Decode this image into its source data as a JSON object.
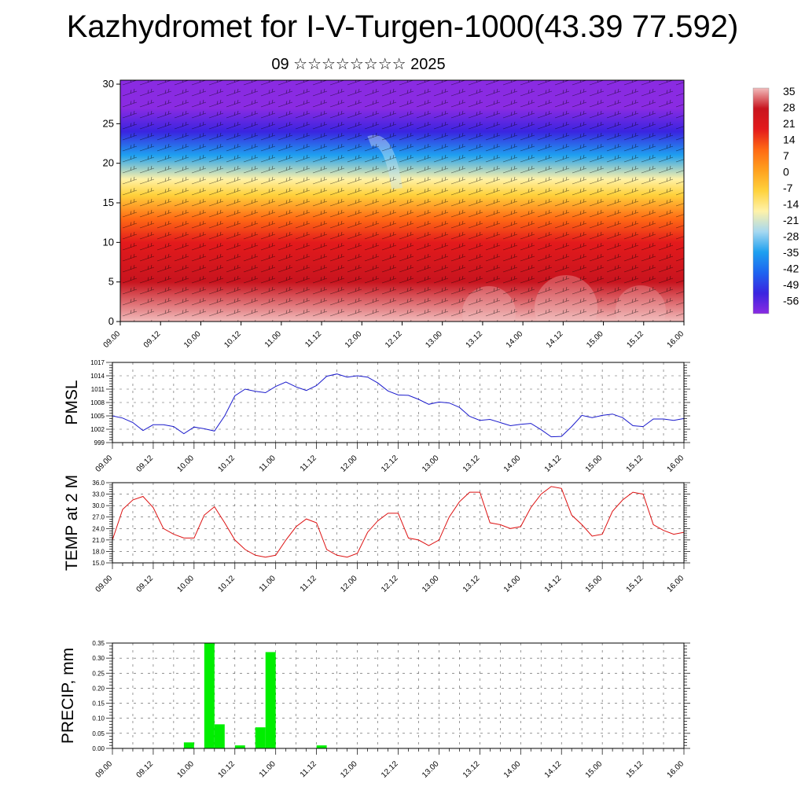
{
  "page": {
    "title": "Kazhydromet for I-V-Turgen-1000(43.39 77.592)",
    "subtitle": "09 ☆☆☆☆☆☆☆☆ 2025"
  },
  "colors": {
    "pmsl_line": "#1a1acc",
    "temp_line": "#dd1111",
    "precip_bar": "#00ee00",
    "heat_scale": [
      "#8a2be2",
      "#3a24e0",
      "#1e64f0",
      "#1ea0f0",
      "#a6d8f0",
      "#fff2a8",
      "#ffd23c",
      "#ffa01e",
      "#ff6a14",
      "#e31a1c",
      "#c8141e",
      "#f2bcbc"
    ]
  },
  "chart_data": [
    {
      "type": "heatmap",
      "id": "cross-section",
      "x_ticks": [
        "09.00",
        "09.12",
        "10.00",
        "10.12",
        "11.00",
        "11.12",
        "12.00",
        "12.12",
        "13.00",
        "13.12",
        "14.00",
        "14.12",
        "15.00",
        "15.12",
        "16.00"
      ],
      "y_ticks": [
        0,
        5,
        10,
        15,
        20,
        25,
        30
      ],
      "ylim": [
        0,
        30.5
      ],
      "colorbar_labels": [
        "35",
        "28",
        "21",
        "14",
        "7",
        "0",
        "-7",
        "-14",
        "-21",
        "-28",
        "-35",
        "-42",
        "-49",
        "-56"
      ],
      "vertical_profile": [
        {
          "level": 0,
          "value": 31
        },
        {
          "level": 5,
          "value": 28
        },
        {
          "level": 10,
          "value": 22
        },
        {
          "level": 13,
          "value": 12
        },
        {
          "level": 16,
          "value": -8
        },
        {
          "level": 18,
          "value": -18
        },
        {
          "level": 21,
          "value": -32
        },
        {
          "level": 24,
          "value": -52
        },
        {
          "level": 27,
          "value": -58
        },
        {
          "level": 30.5,
          "value": -56
        }
      ]
    },
    {
      "type": "line",
      "id": "pmsl",
      "ylabel": "PMSL",
      "y_ticks": [
        "999",
        "1002",
        "1005",
        "1008",
        "1011",
        "1014",
        "1017"
      ],
      "ylim": [
        999,
        1017
      ],
      "x_ticks": [
        "09.00",
        "09.12",
        "10.00",
        "10.12",
        "11.00",
        "11.12",
        "12.00",
        "12.12",
        "13.00",
        "13.12",
        "14.00",
        "14.12",
        "15.00",
        "15.12",
        "16.00"
      ],
      "series": [
        {
          "x_hours": [
            0,
            3,
            6,
            9,
            12,
            15,
            18,
            21,
            24,
            27,
            30,
            33,
            36,
            39,
            42,
            45,
            48,
            51,
            54,
            57,
            60,
            63,
            66,
            69,
            72,
            75,
            78,
            81,
            84,
            87,
            90,
            93,
            96,
            99,
            102,
            105,
            108,
            111,
            114,
            117,
            120,
            123,
            126,
            129,
            132,
            135,
            138,
            141,
            144,
            147,
            150,
            153,
            156,
            159,
            162,
            165,
            168
          ],
          "values": [
            1005,
            1004.5,
            1003.5,
            1001.7,
            1003,
            1003,
            1002.6,
            1001,
            1002.5,
            1002.1,
            1001.6,
            1005,
            1009.5,
            1011,
            1010.5,
            1010.2,
            1011.6,
            1012.6,
            1011.5,
            1010.7,
            1011.8,
            1013.9,
            1014.4,
            1013.7,
            1014,
            1013.7,
            1012.4,
            1010.6,
            1009.7,
            1009.6,
            1008.7,
            1007.6,
            1008.1,
            1007.9,
            1006.9,
            1004.9,
            1004,
            1004.2,
            1003.5,
            1002.8,
            1003.1,
            1003.3,
            1001.9,
            1000.3,
            1000.4,
            1002.6,
            1005.1,
            1004.6,
            1005.1,
            1005.4,
            1004.6,
            1002.8,
            1002.6,
            1004.3,
            1004.3,
            1004,
            1004.4
          ]
        }
      ]
    },
    {
      "type": "line",
      "id": "temp",
      "ylabel": "TEMP at 2 M",
      "y_ticks": [
        "15.0",
        "18.0",
        "21.0",
        "24.0",
        "27.0",
        "30.0",
        "33.0",
        "36.0"
      ],
      "ylim": [
        15,
        36
      ],
      "x_ticks": [
        "09.00",
        "09.12",
        "10.00",
        "10.12",
        "11.00",
        "11.12",
        "12.00",
        "12.12",
        "13.00",
        "13.12",
        "14.00",
        "14.12",
        "15.00",
        "15.12",
        "16.00"
      ],
      "series": [
        {
          "x_hours": [
            0,
            3,
            6,
            9,
            12,
            15,
            18,
            21,
            24,
            27,
            30,
            33,
            36,
            39,
            42,
            45,
            48,
            51,
            54,
            57,
            60,
            63,
            66,
            69,
            72,
            75,
            78,
            81,
            84,
            87,
            90,
            93,
            96,
            99,
            102,
            105,
            108,
            111,
            114,
            117,
            120,
            123,
            126,
            129,
            132,
            135,
            138,
            141,
            144,
            147,
            150,
            153,
            156,
            159,
            162,
            165,
            168
          ],
          "values": [
            21,
            29,
            31.5,
            32.4,
            29.5,
            24,
            22.5,
            21.5,
            21.5,
            27.5,
            29.7,
            25.5,
            21,
            18.5,
            17,
            16.5,
            17,
            21,
            24.5,
            26.5,
            25.5,
            18.5,
            17,
            16.5,
            17.5,
            23,
            26,
            28,
            28,
            21.5,
            21,
            19.5,
            21,
            27,
            31,
            33.5,
            33.5,
            25.5,
            25,
            24,
            24.5,
            29.5,
            33,
            35,
            34.5,
            27.5,
            25,
            22,
            22.5,
            28.5,
            31.5,
            33.5,
            33,
            25,
            23.5,
            22.5,
            23
          ]
        }
      ]
    },
    {
      "type": "bar",
      "id": "precip",
      "ylabel": "PRECIP, mm",
      "y_ticks": [
        "0.00",
        "0.05",
        "0.10",
        "0.15",
        "0.20",
        "0.25",
        "0.30",
        "0.35"
      ],
      "ylim": [
        0,
        0.35
      ],
      "x_ticks": [
        "09.00",
        "09.12",
        "10.00",
        "10.12",
        "11.00",
        "11.12",
        "12.00",
        "12.12",
        "13.00",
        "13.12",
        "14.00",
        "14.12",
        "15.00",
        "15.12",
        "16.00"
      ],
      "bars": [
        {
          "x_hours": 24,
          "value": 0.02
        },
        {
          "x_hours": 30,
          "value": 0.35
        },
        {
          "x_hours": 33,
          "value": 0.08
        },
        {
          "x_hours": 39,
          "value": 0.01
        },
        {
          "x_hours": 45,
          "value": 0.07
        },
        {
          "x_hours": 48,
          "value": 0.32
        },
        {
          "x_hours": 63,
          "value": 0.01
        }
      ]
    }
  ]
}
